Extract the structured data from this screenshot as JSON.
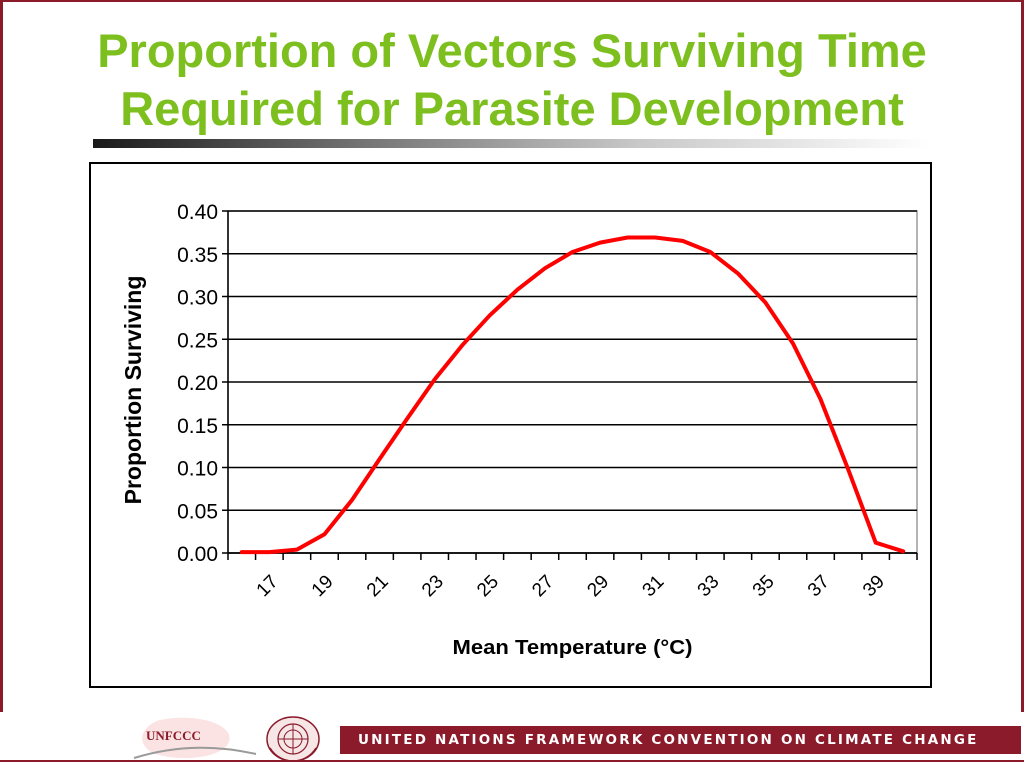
{
  "slide": {
    "title_line1": "Proportion of Vectors Surviving Time",
    "title_line2": "Required for Parasite Development",
    "colors": {
      "title": "#7cbf1e",
      "accent": "#8b1a2b",
      "series": "#ff0000"
    }
  },
  "footer": {
    "org_text": "UNITED NATIONS FRAMEWORK CONVENTION ON CLIMATE CHANGE",
    "logo_text": "UNFCCC",
    "logo_icon": "unfccc-logo",
    "un_emblem_icon": "un-emblem-icon"
  },
  "chart_data": {
    "type": "line",
    "title": "",
    "xlabel": "Mean Temperature (°C)",
    "ylabel": "Proportion Surviving",
    "x": [
      16,
      17,
      18,
      19,
      20,
      21,
      22,
      23,
      24,
      25,
      26,
      27,
      28,
      29,
      30,
      31,
      32,
      33,
      34,
      35,
      36,
      37,
      38,
      39,
      40
    ],
    "x_tick_labels": [
      "17",
      "19",
      "21",
      "23",
      "25",
      "27",
      "29",
      "31",
      "33",
      "35",
      "37",
      "39"
    ],
    "y_tick_labels": [
      "0.00",
      "0.05",
      "0.10",
      "0.15",
      "0.20",
      "0.25",
      "0.30",
      "0.35",
      "0.40"
    ],
    "ylim": [
      0,
      0.4
    ],
    "grid": true,
    "series": [
      {
        "color": "#ff0000",
        "values": [
          0.001,
          0.001,
          0.004,
          0.022,
          0.062,
          0.11,
          0.157,
          0.203,
          0.243,
          0.278,
          0.308,
          0.333,
          0.352,
          0.363,
          0.369,
          0.369,
          0.365,
          0.352,
          0.327,
          0.293,
          0.245,
          0.18,
          0.098,
          0.012,
          0.002
        ]
      }
    ]
  }
}
